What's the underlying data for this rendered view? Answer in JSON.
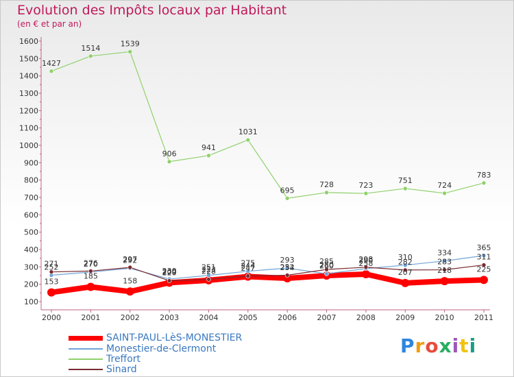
{
  "chart_data": {
    "type": "line",
    "title": "Evolution des Impôts locaux par Habitant",
    "subtitle": "(en € et par an)",
    "xlabel": "",
    "ylabel": "",
    "ylim": [
      100,
      1600
    ],
    "yticks": [
      100,
      200,
      300,
      400,
      500,
      600,
      700,
      800,
      900,
      1000,
      1100,
      1200,
      1300,
      1400,
      1500,
      1600
    ],
    "x": [
      "2000",
      "2001",
      "2002",
      "2003",
      "2004",
      "2005",
      "2006",
      "2007",
      "2008",
      "2009",
      "2010",
      "2011"
    ],
    "grid": false,
    "legend_position": "bottom-left",
    "series": [
      {
        "name": "SAINT-PAUL-LèS-MONESTIER",
        "color": "#ff0000",
        "bold": true,
        "values": [
          153,
          185,
          158,
          209,
          223,
          244,
          234,
          250,
          258,
          207,
          218,
          225
        ],
        "labels": [
          "153",
          "185",
          "158",
          "209",
          "223",
          "244",
          "234",
          "250",
          "258",
          "207",
          "218",
          "225"
        ]
      },
      {
        "name": "Monestier-de-Clermont",
        "color": "#6fa3d6",
        "bold": false,
        "values": [
          252,
          270,
          292,
          230,
          251,
          275,
          293,
          260,
          290,
          310,
          334,
          365
        ],
        "labels": [
          "252",
          "270",
          "292",
          "230",
          "251",
          "275",
          "293",
          "260",
          "290",
          "310",
          "334",
          "365"
        ]
      },
      {
        "name": "Treffort",
        "color": "#8fd16a",
        "bold": false,
        "values": [
          1427,
          1514,
          1539,
          906,
          941,
          1031,
          695,
          728,
          723,
          751,
          724,
          783
        ],
        "labels": [
          "1427",
          "1514",
          "1539",
          "906",
          "941",
          "1031",
          "695",
          "728",
          "723",
          "751",
          "724",
          "783"
        ]
      },
      {
        "name": "Sinard",
        "color": "#7a2a30",
        "bold": false,
        "values": [
          271,
          276,
          297,
          220,
          228,
          247,
          252,
          285,
          298,
          282,
          283,
          311
        ],
        "labels": [
          "271",
          "276",
          "297",
          "220",
          "228",
          "247",
          "252",
          "285",
          "298",
          "282",
          "283",
          "311"
        ]
      }
    ]
  },
  "logo": {
    "text": "Proxiti",
    "colors": [
      "#2e86de",
      "#f39c12",
      "#e74c3c",
      "#27ae60",
      "#9b59b6",
      "#f1c40f",
      "#16a085"
    ]
  }
}
